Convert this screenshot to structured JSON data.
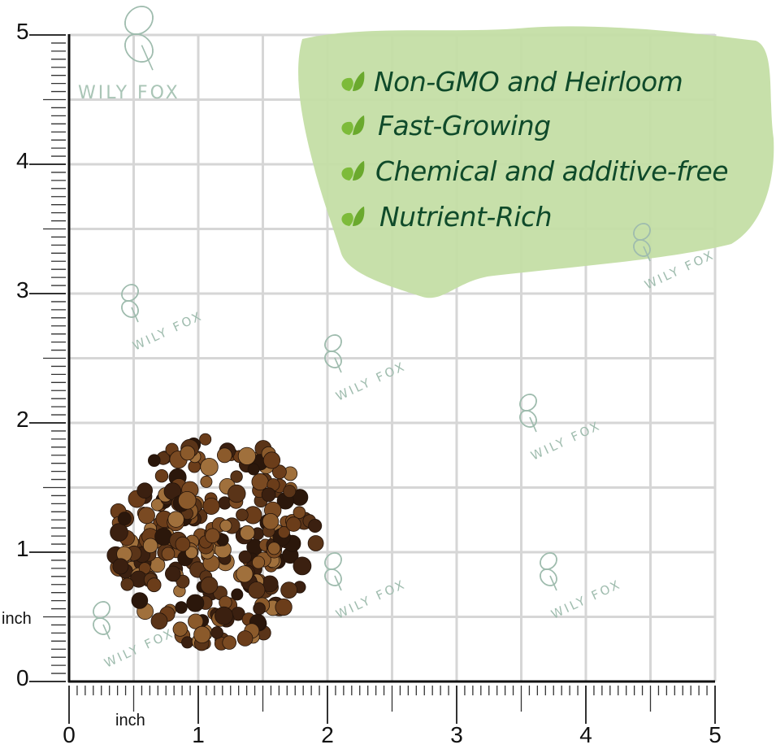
{
  "brand": "WILY FOX",
  "unit_label": "inch",
  "x_axis_labels": [
    "0",
    "1",
    "2",
    "3",
    "4",
    "5"
  ],
  "y_axis_labels": [
    "0",
    "1",
    "2",
    "3",
    "4",
    "5"
  ],
  "features": [
    "Non-GMO and Heirloom",
    "Fast-Growing",
    "Chemical and additive-free",
    "Nutrient-Rich"
  ],
  "colors": {
    "grid": "#d3d3d3",
    "banner": "#c4dea5",
    "feature_text": "#0f4a2a",
    "leaf": "#7dbb3a",
    "seed": "#5a3418",
    "watermark": "#9fbcae"
  }
}
